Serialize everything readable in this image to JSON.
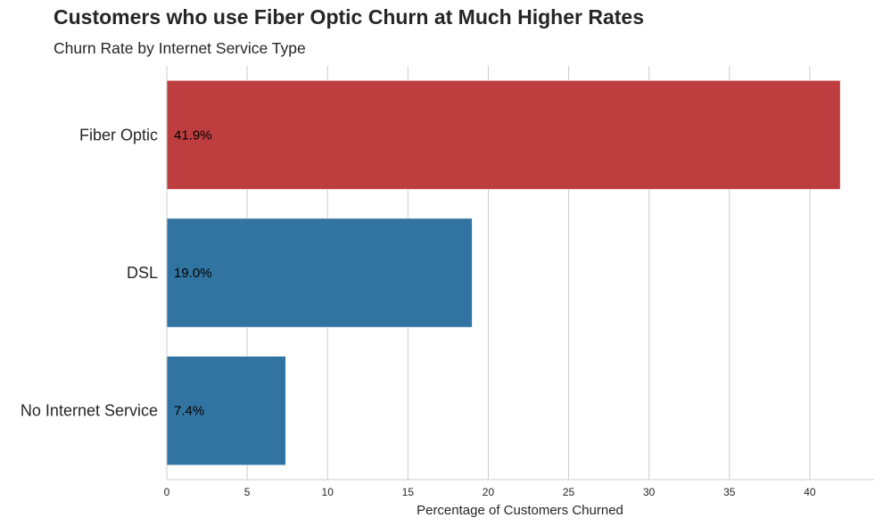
{
  "chart_data": {
    "type": "bar",
    "orientation": "horizontal",
    "title": "Customers who use Fiber Optic Churn at Much Higher Rates",
    "subtitle": "Churn Rate by Internet Service Type",
    "xlabel": "Percentage of Customers Churned",
    "ylabel": "",
    "xlim": [
      0,
      44
    ],
    "xticks": [
      0,
      5,
      10,
      15,
      20,
      25,
      30,
      35,
      40
    ],
    "grid": "vertical",
    "categories": [
      "Fiber Optic",
      "DSL",
      "No Internet Service"
    ],
    "values": [
      41.9,
      19.0,
      7.4
    ],
    "data_labels": [
      "41.9%",
      "19.0%",
      "7.4%"
    ],
    "colors": [
      "#be3d3e",
      "#3274a1",
      "#3274a1"
    ]
  }
}
